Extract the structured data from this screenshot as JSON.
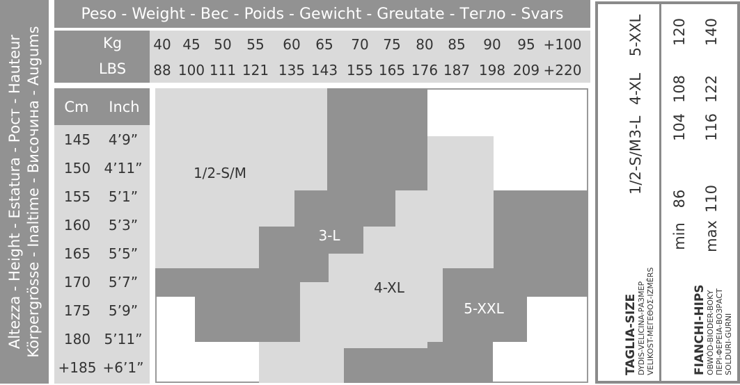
{
  "height_axis_label": [
    "Altezza - Height - Estatura - Рост - Hauteur",
    "Körpergrösse - Inaltime - Височина - Augums"
  ],
  "weight_title": "Peso - Weight - Вес - Poids - Gewicht - Greutate - Тегло - Svars",
  "weight_units": {
    "kg": "Kg",
    "lbs": "LBS"
  },
  "weight_kg": [
    "40",
    "45",
    "50",
    "55",
    "60",
    "65",
    "70",
    "75",
    "80",
    "85",
    "90",
    "95",
    "+100"
  ],
  "weight_lbs": [
    "88",
    "100",
    "111",
    "121",
    "135",
    "143",
    "155",
    "165",
    "176",
    "187",
    "198",
    "209",
    "+220"
  ],
  "height_header": {
    "cm": "Cm",
    "inch": "Inch"
  },
  "heights": [
    {
      "cm": "145",
      "inch": "4’9”"
    },
    {
      "cm": "150",
      "inch": "4’11”"
    },
    {
      "cm": "155",
      "inch": "5’1”"
    },
    {
      "cm": "160",
      "inch": "5’3”"
    },
    {
      "cm": "165",
      "inch": "5’5”"
    },
    {
      "cm": "170",
      "inch": "5’7”"
    },
    {
      "cm": "175",
      "inch": "5’9”"
    },
    {
      "cm": "180",
      "inch": "5’11”"
    },
    {
      "cm": "+185",
      "inch": "+6’1”"
    }
  ],
  "grid_regions": [
    "1/2-S/M",
    "3-L",
    "4-XL",
    "5-XXL"
  ],
  "colors": {
    "dark": "#929292",
    "light": "#dadada",
    "text": "#333333"
  },
  "size_table": {
    "size_title": "TAGLIA-SIZE",
    "size_sub": [
      "DYDIS-VELICINA-РАЗМЕР",
      "VELIKOST-ΜΕΓΕΘΟΣ-IZMĒRS"
    ],
    "hips_title": "FIANCHI-HIPS",
    "hips_sub": [
      "OBWÓD-BIODER-BOKY",
      "ΠΕΡΙ-ΦΕΡΕΙΑ-ВОЗРАСТ",
      "SOLDURI-GURNI"
    ],
    "min_label": "min",
    "max_label": "max",
    "sizes": [
      "1/2-S/M",
      "3-L",
      "4-XL",
      "5-XXL"
    ],
    "hips_min": [
      "86",
      "104",
      "108",
      "120"
    ],
    "hips_max": [
      "110",
      "116",
      "122",
      "140"
    ]
  }
}
